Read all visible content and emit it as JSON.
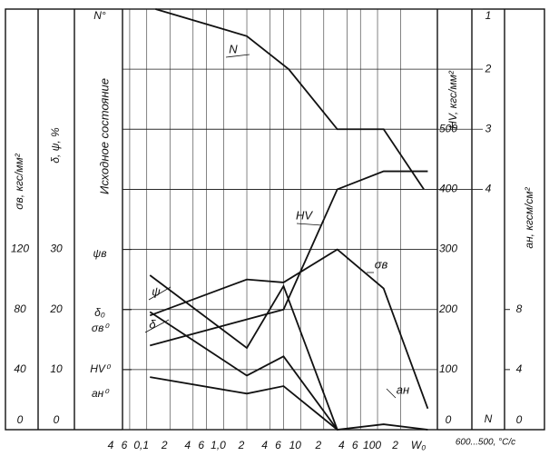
{
  "chart_data": {
    "type": "line",
    "xscale": "log",
    "xlabel": "600...500, °C/c",
    "xlim": [
      0.04,
      600
    ],
    "xticks": [
      {
        "value": 0.04,
        "label": "4"
      },
      {
        "value": 0.06,
        "label": "6"
      },
      {
        "value": 0.1,
        "label": "0,1"
      },
      {
        "value": 0.2,
        "label": "2"
      },
      {
        "value": 0.4,
        "label": "4"
      },
      {
        "value": 0.6,
        "label": "6"
      },
      {
        "value": 1,
        "label": "1,0"
      },
      {
        "value": 2,
        "label": "2"
      },
      {
        "value": 4,
        "label": "4"
      },
      {
        "value": 6,
        "label": "6"
      },
      {
        "value": 10,
        "label": "10"
      },
      {
        "value": 20,
        "label": "2"
      },
      {
        "value": 40,
        "label": "4"
      },
      {
        "value": 60,
        "label": "6"
      },
      {
        "value": 100,
        "label": "100"
      },
      {
        "value": 200,
        "label": "2"
      },
      {
        "value": 400,
        "label": "W₀"
      }
    ],
    "axes": [
      {
        "label": "σв, кгс/мм²",
        "ylim": [
          0,
          280
        ],
        "yticks": [
          0,
          40,
          80,
          120
        ]
      },
      {
        "label": "δ, ψ, %",
        "ylim": [
          0,
          70
        ],
        "yticks": [
          0,
          10,
          20,
          30
        ]
      },
      {
        "label": "HV, кгс/мм²",
        "ylim": [
          0,
          700
        ],
        "yticks": [
          0,
          100,
          200,
          300,
          400,
          500
        ]
      },
      {
        "label": "N",
        "ylim": [
          8,
          1
        ],
        "yticks": [
          1,
          2,
          3,
          4
        ]
      },
      {
        "label": "aн, кгсм/см²",
        "ylim": [
          0,
          28
        ],
        "yticks": [
          0,
          4,
          8
        ]
      }
    ],
    "initial_state": {
      "label": "Исходное состояние",
      "marks": [
        "N°",
        "ψв",
        "δ₀",
        "σв⁰",
        "HV⁰",
        "aн⁰"
      ]
    },
    "series": [
      {
        "name": "N",
        "axis": 3,
        "color": "#111",
        "x": [
          0.13,
          2,
          7,
          30,
          120,
          400
        ],
        "values": [
          1,
          1.45,
          2,
          3,
          3,
          4
        ]
      },
      {
        "name": "HV",
        "axis": 2,
        "color": "#111",
        "x": [
          0.11,
          6,
          30,
          120,
          450
        ],
        "values": [
          140,
          200,
          400,
          430,
          430
        ]
      },
      {
        "name": "σв",
        "axis": 0,
        "color": "#111",
        "x": [
          0.11,
          2,
          6,
          30,
          120,
          450
        ],
        "values": [
          76,
          100,
          98,
          120,
          94,
          14
        ]
      },
      {
        "name": "ψ",
        "axis": 1,
        "color": "#111",
        "x": [
          0.11,
          2,
          6,
          30
        ],
        "values": [
          25.7,
          13.6,
          23.9,
          0
        ]
      },
      {
        "name": "δ",
        "axis": 1,
        "color": "#111",
        "x": [
          0.11,
          2,
          6,
          30,
          120,
          450
        ],
        "values": [
          19.6,
          9,
          12.2,
          0,
          0.9,
          0
        ]
      },
      {
        "name": "aн",
        "axis": 4,
        "color": "#111",
        "x": [
          0.11,
          2,
          6,
          30
        ],
        "values": [
          3.5,
          2.4,
          2.9,
          0
        ]
      }
    ]
  }
}
